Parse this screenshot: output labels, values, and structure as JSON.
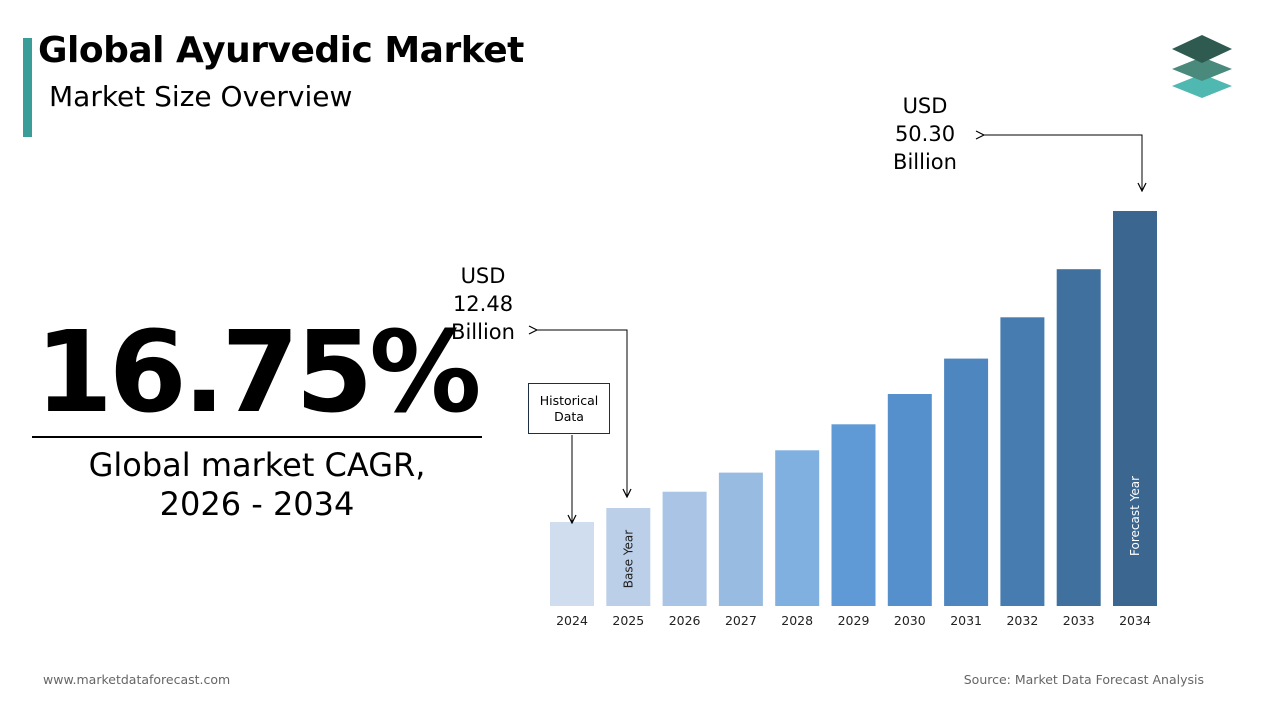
{
  "header": {
    "title": "Global Ayurvedic Market",
    "subtitle": "Market Size Overview"
  },
  "cagr": {
    "value": "16.75%",
    "label_line1": "Global market CAGR,",
    "label_line2": "2026 - 2034"
  },
  "callouts": {
    "start": {
      "currency": "USD",
      "amount": "12.48",
      "unit": "Billion"
    },
    "end": {
      "currency": "USD",
      "amount": "50.30",
      "unit": "Billion"
    },
    "historical_line1": "Historical",
    "historical_line2": "Data"
  },
  "chart_data": {
    "type": "bar",
    "categories": [
      "2024",
      "2025",
      "2026",
      "2027",
      "2028",
      "2029",
      "2030",
      "2031",
      "2032",
      "2033",
      "2034"
    ],
    "values": [
      10.7,
      12.48,
      14.56,
      16.99,
      19.83,
      23.14,
      27.0,
      31.5,
      36.76,
      42.89,
      50.3
    ],
    "bar_labels": {
      "2025": "Base Year",
      "2034": "Forecast Year"
    },
    "colors": [
      "#d0ddef",
      "#bccfe9",
      "#aac4e6",
      "#98bbe2",
      "#80b0e0",
      "#5f9ad6",
      "#5690cc",
      "#4e86c0",
      "#467caf",
      "#40719e",
      "#3b6690"
    ],
    "ylim": [
      0,
      50.3
    ],
    "grid": false,
    "legend": "none"
  },
  "footer": {
    "website": "www.marketdataforecast.com",
    "source": "Source: Market Data Forecast Analysis"
  },
  "icons": {
    "logo": "stacked-layers-logo"
  },
  "colors": {
    "accent": "#3a9d98",
    "logo_top": "#2e5a50",
    "logo_mid": "#4a8a7c",
    "logo_bottom": "#4fb8b0"
  }
}
